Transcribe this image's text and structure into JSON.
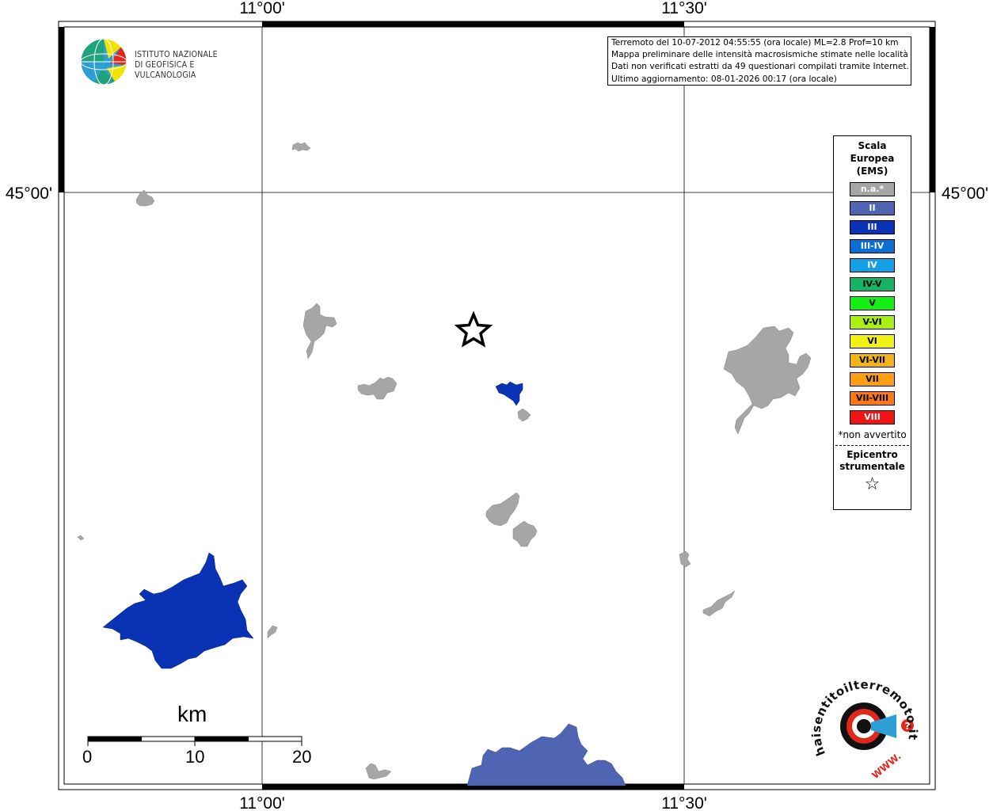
{
  "map": {
    "lon_labels_top": [
      "11°00'",
      "11°30'"
    ],
    "lon_labels_bottom": [
      "11°00'",
      "11°30'"
    ],
    "lat_labels": [
      "45°00'",
      "45°00'"
    ]
  },
  "logo": {
    "line1": "ISTITUTO NAZIONALE",
    "line2": "DI GEOFISICA E VULCANOLOGIA"
  },
  "info_box": {
    "lines": [
      "Terremoto del 10-07-2012 04:55:55 (ora locale) ML=2.8 Prof=10 km",
      "Mappa preliminare delle intensità macrosismiche stimate nelle località",
      "Dati non verificati estratti da 49 questionari compilati tramite Internet.",
      "Ultimo aggiornamento: 08-01-2026 00:17 (ora locale)"
    ]
  },
  "legend": {
    "title_lines": [
      "Scala",
      "Europea",
      "(EMS)"
    ],
    "items": [
      {
        "label": "n.a.*",
        "color": "#a6a6a6"
      },
      {
        "label": "II",
        "color": "#5064b4"
      },
      {
        "label": "III",
        "color": "#0a32b4"
      },
      {
        "label": "III-IV",
        "color": "#0a6ed2"
      },
      {
        "label": "IV",
        "color": "#14a0e6"
      },
      {
        "label": "IV-V",
        "color": "#14b464"
      },
      {
        "label": "V",
        "color": "#14f014"
      },
      {
        "label": "V-VI",
        "color": "#aaf014"
      },
      {
        "label": "VI",
        "color": "#f0f014"
      },
      {
        "label": "VI-VII",
        "color": "#f0b414"
      },
      {
        "label": "VII",
        "color": "#ffa014"
      },
      {
        "label": "VII-VIII",
        "color": "#ff7814"
      },
      {
        "label": "VIII",
        "color": "#f01414"
      }
    ],
    "note": "*non avvertito",
    "epicenter_lines": [
      "Epicentro",
      "strumentale"
    ],
    "epicenter_symbol": "☆"
  },
  "scalebar": {
    "unit": "km",
    "ticks": [
      "0",
      "10",
      "20"
    ]
  },
  "badge": {
    "text": "haisentitoilterremoto.it",
    "url": "WWW."
  }
}
